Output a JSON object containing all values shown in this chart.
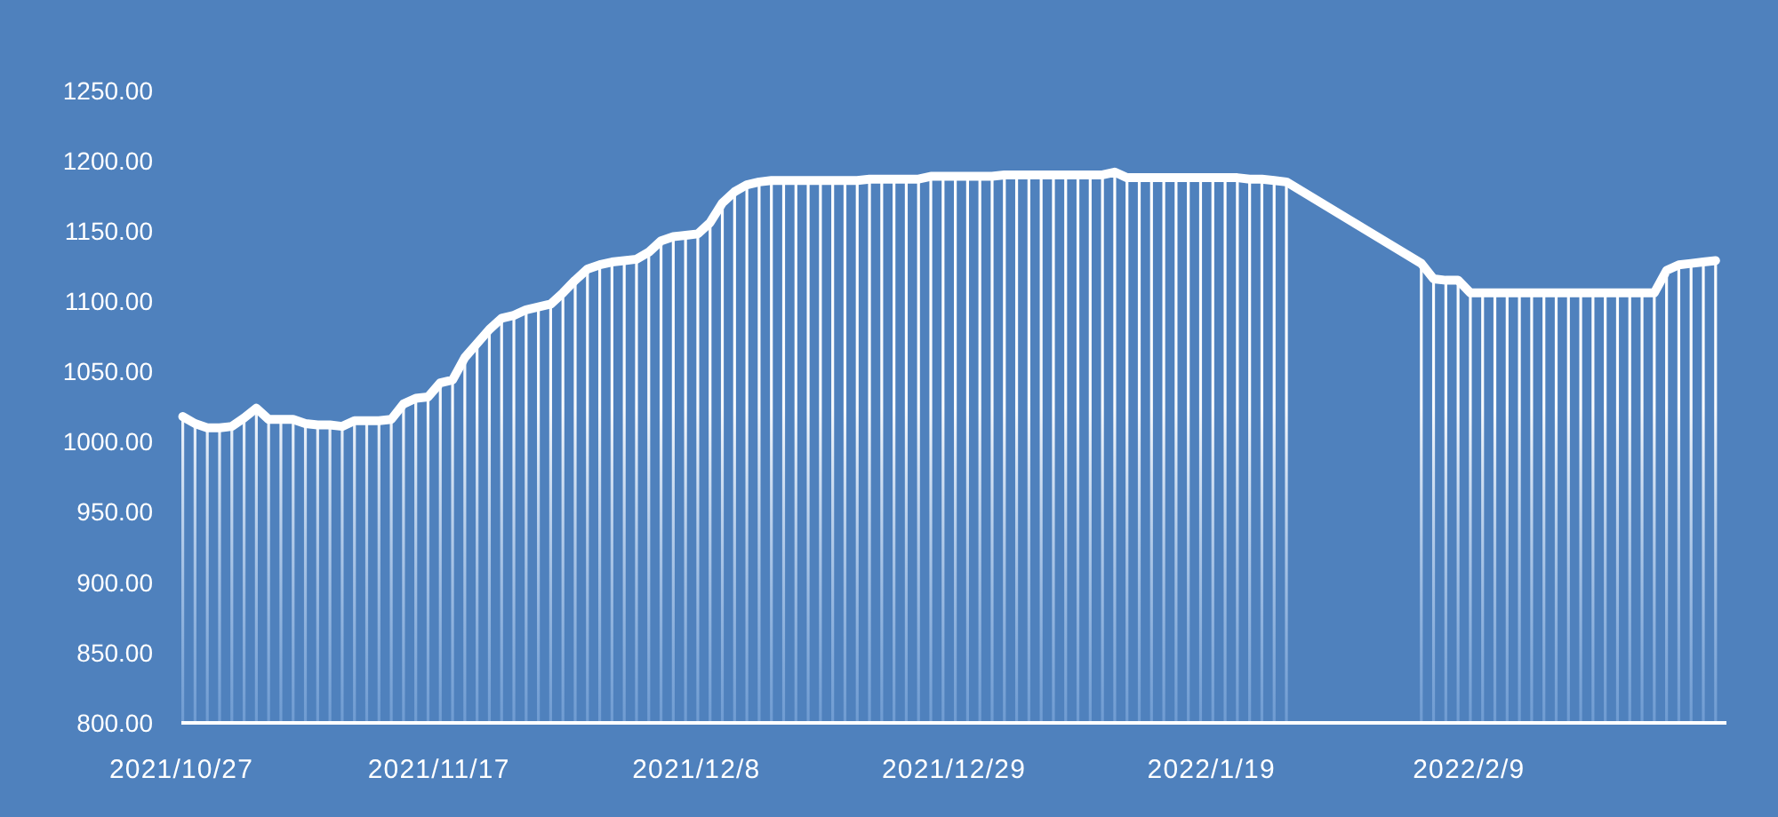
{
  "chart_data": {
    "type": "line",
    "x": [
      "2021-10-27",
      "2021-10-28",
      "2021-10-29",
      "2021-10-30",
      "2021-10-31",
      "2021-11-01",
      "2021-11-02",
      "2021-11-03",
      "2021-11-04",
      "2021-11-05",
      "2021-11-06",
      "2021-11-07",
      "2021-11-08",
      "2021-11-09",
      "2021-11-10",
      "2021-11-11",
      "2021-11-12",
      "2021-11-13",
      "2021-11-14",
      "2021-11-15",
      "2021-11-16",
      "2021-11-17",
      "2021-11-18",
      "2021-11-19",
      "2021-11-20",
      "2021-11-21",
      "2021-11-22",
      "2021-11-23",
      "2021-11-24",
      "2021-11-25",
      "2021-11-26",
      "2021-11-27",
      "2021-11-28",
      "2021-11-29",
      "2021-11-30",
      "2021-12-01",
      "2021-12-02",
      "2021-12-03",
      "2021-12-04",
      "2021-12-05",
      "2021-12-06",
      "2021-12-07",
      "2021-12-08",
      "2021-12-09",
      "2021-12-10",
      "2021-12-11",
      "2021-12-12",
      "2021-12-13",
      "2021-12-14",
      "2021-12-15",
      "2021-12-16",
      "2021-12-17",
      "2021-12-18",
      "2021-12-19",
      "2021-12-20",
      "2021-12-21",
      "2021-12-22",
      "2021-12-23",
      "2021-12-24",
      "2021-12-25",
      "2021-12-26",
      "2021-12-27",
      "2021-12-28",
      "2021-12-29",
      "2021-12-30",
      "2021-12-31",
      "2022-01-01",
      "2022-01-02",
      "2022-01-03",
      "2022-01-04",
      "2022-01-05",
      "2022-01-06",
      "2022-01-07",
      "2022-01-08",
      "2022-01-09",
      "2022-01-10",
      "2022-01-11",
      "2022-01-12",
      "2022-01-13",
      "2022-01-14",
      "2022-01-15",
      "2022-01-16",
      "2022-01-17",
      "2022-01-18",
      "2022-01-19",
      "2022-01-20",
      "2022-01-21",
      "2022-01-22",
      "2022-01-23",
      "2022-01-24",
      "2022-01-25",
      "2022-02-05",
      "2022-02-06",
      "2022-02-07",
      "2022-02-08",
      "2022-02-09",
      "2022-02-10",
      "2022-02-11",
      "2022-02-12",
      "2022-02-13",
      "2022-02-14",
      "2022-02-15",
      "2022-02-16",
      "2022-02-17",
      "2022-02-18",
      "2022-02-19",
      "2022-02-20",
      "2022-02-21",
      "2022-02-22",
      "2022-02-23",
      "2022-02-24",
      "2022-02-25",
      "2022-02-26",
      "2022-02-27",
      "2022-02-28",
      "2022-03-01"
    ],
    "series": [
      {
        "type": "bar",
        "color": "#ffffff",
        "values": [
          1018,
          1013,
          1010,
          1010,
          1011,
          1017,
          1024,
          1016,
          1016,
          1016,
          1013,
          1012,
          1012,
          1011,
          1015,
          1015,
          1015,
          1016,
          1027,
          1031,
          1032,
          1042,
          1044,
          1060,
          1070,
          1080,
          1088,
          1090,
          1094,
          1096,
          1098,
          1106,
          1115,
          1123,
          1126,
          1128,
          1129,
          1130,
          1135,
          1143,
          1146,
          1147,
          1148,
          1156,
          1170,
          1178,
          1183,
          1185,
          1186,
          1186,
          1186,
          1186,
          1186,
          1186,
          1186,
          1186,
          1187,
          1187,
          1187,
          1187,
          1187,
          1189,
          1189,
          1189,
          1189,
          1189,
          1189,
          1190,
          1190,
          1190,
          1190,
          1190,
          1190,
          1190,
          1190,
          1190,
          1192,
          1188,
          1188,
          1188,
          1188,
          1188,
          1188,
          1188,
          1188,
          1188,
          1188,
          1187,
          1187,
          1186,
          1185,
          1127,
          1116,
          1115,
          1115,
          1106,
          1106,
          1106,
          1106,
          1106,
          1106,
          1106,
          1106,
          1106,
          1106,
          1106,
          1106,
          1106,
          1106,
          1106,
          1106,
          1122,
          1126,
          1127,
          1128,
          1129
        ]
      },
      {
        "color": "#ffffff",
        "values": [
          1018,
          1013,
          1010,
          1010,
          1011,
          1017,
          1024,
          1016,
          1016,
          1016,
          1013,
          1012,
          1012,
          1011,
          1015,
          1015,
          1015,
          1016,
          1027,
          1031,
          1032,
          1042,
          1044,
          1060,
          1070,
          1080,
          1088,
          1090,
          1094,
          1096,
          1098,
          1106,
          1115,
          1123,
          1126,
          1128,
          1129,
          1130,
          1135,
          1143,
          1146,
          1147,
          1148,
          1156,
          1170,
          1178,
          1183,
          1185,
          1186,
          1186,
          1186,
          1186,
          1186,
          1186,
          1186,
          1186,
          1187,
          1187,
          1187,
          1187,
          1187,
          1189,
          1189,
          1189,
          1189,
          1189,
          1189,
          1190,
          1190,
          1190,
          1190,
          1190,
          1190,
          1190,
          1190,
          1190,
          1192,
          1188,
          1188,
          1188,
          1188,
          1188,
          1188,
          1188,
          1188,
          1188,
          1188,
          1187,
          1187,
          1186,
          1185,
          1127,
          1116,
          1115,
          1115,
          1106,
          1106,
          1106,
          1106,
          1106,
          1106,
          1106,
          1106,
          1106,
          1106,
          1106,
          1106,
          1106,
          1106,
          1106,
          1106,
          1122,
          1126,
          1127,
          1128,
          1129
        ]
      }
    ],
    "xlim": [
      "2021-10-27",
      "2022-03-02"
    ],
    "xticks": [
      {
        "value": "2021-10-27",
        "label": "2021/10/27"
      },
      {
        "value": "2021-11-17",
        "label": "2021/11/17"
      },
      {
        "value": "2021-12-08",
        "label": "2021/12/8"
      },
      {
        "value": "2021-12-29",
        "label": "2021/12/29"
      },
      {
        "value": "2022-01-19",
        "label": "2022/1/19"
      },
      {
        "value": "2022-02-09",
        "label": "2022/2/9"
      }
    ],
    "ylim": [
      800,
      1250
    ],
    "yticks": [
      {
        "value": 800,
        "label": "800.00"
      },
      {
        "value": 850,
        "label": "850.00"
      },
      {
        "value": 900,
        "label": "900.00"
      },
      {
        "value": 950,
        "label": "950.00"
      },
      {
        "value": 1000,
        "label": "1000.00"
      },
      {
        "value": 1050,
        "label": "1050.00"
      },
      {
        "value": 1100,
        "label": "1100.00"
      },
      {
        "value": 1150,
        "label": "1150.00"
      },
      {
        "value": 1200,
        "label": "1200.00"
      },
      {
        "value": 1250,
        "label": "1250.00"
      }
    ],
    "grid": false,
    "marker": "none",
    "line_style": "solid"
  }
}
